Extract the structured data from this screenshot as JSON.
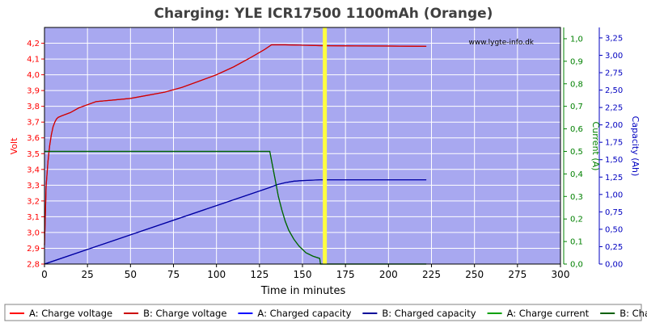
{
  "chart_data": {
    "type": "line",
    "title": "Charging: YLE ICR17500 1100mAh (Orange)",
    "watermark": "www.lygte-info.dk",
    "xlabel": "Time in minutes",
    "xlim": [
      0,
      300
    ],
    "x_ticks": [
      "0",
      "25",
      "50",
      "75",
      "100",
      "125",
      "150",
      "175",
      "200",
      "225",
      "250",
      "275",
      "300"
    ],
    "y_axes": {
      "voltage": {
        "label": "Volt",
        "color": "#ff0000",
        "lim": [
          2.8,
          4.3
        ],
        "ticks": [
          "2,8",
          "2,9",
          "3,0",
          "3,1",
          "3,2",
          "3,3",
          "3,4",
          "3,5",
          "3,6",
          "3,7",
          "3,8",
          "3,9",
          "4,0",
          "4,1",
          "4,2"
        ]
      },
      "current": {
        "label": "Current (A)",
        "color": "#008000",
        "lim": [
          0,
          1.05
        ],
        "ticks": [
          "0,0",
          "0,1",
          "0,2",
          "0,3",
          "0,4",
          "0,5",
          "0,6",
          "0,7",
          "0,8",
          "0,9",
          "1,0"
        ]
      },
      "capacity": {
        "label": "Capacity (Ah)",
        "color": "#0000c0",
        "lim": [
          0,
          3.4
        ],
        "ticks": [
          "0,00",
          "0,25",
          "0,50",
          "0,75",
          "1,00",
          "1,25",
          "1,50",
          "1,75",
          "2,00",
          "2,25",
          "2,50",
          "2,75",
          "3,00",
          "3,25"
        ]
      }
    },
    "colors": {
      "plot_bg": "#a8a8f0",
      "grid": "#ffffff",
      "marker": "#ffff40"
    },
    "marker_x": 163,
    "series": [
      {
        "name": "A: Charge voltage",
        "color": "#ff0000",
        "axis": "voltage",
        "x": [
          0,
          1,
          2,
          3,
          4,
          5,
          6,
          7,
          8,
          10,
          15,
          20,
          25,
          30,
          40,
          50,
          60,
          70,
          80,
          90,
          100,
          110,
          120,
          128,
          132,
          140,
          160,
          180,
          200,
          222
        ],
        "y": [
          2.92,
          3.3,
          3.45,
          3.55,
          3.62,
          3.67,
          3.7,
          3.72,
          3.73,
          3.74,
          3.76,
          3.79,
          3.81,
          3.83,
          3.84,
          3.85,
          3.87,
          3.89,
          3.92,
          3.96,
          4.0,
          4.05,
          4.11,
          4.16,
          4.19,
          4.19,
          4.185,
          4.183,
          4.182,
          4.18
        ]
      },
      {
        "name": "B: Charge voltage",
        "color": "#cc0000",
        "axis": "voltage",
        "x": [
          0,
          1,
          2,
          3,
          4,
          5,
          6,
          7,
          8,
          10,
          15,
          20,
          25,
          30,
          40,
          50,
          60,
          70,
          80,
          90,
          100,
          110,
          120,
          128,
          132,
          140,
          160,
          180,
          200,
          222
        ],
        "y": [
          2.92,
          3.3,
          3.45,
          3.55,
          3.62,
          3.67,
          3.7,
          3.72,
          3.73,
          3.74,
          3.76,
          3.79,
          3.81,
          3.83,
          3.84,
          3.85,
          3.87,
          3.89,
          3.92,
          3.96,
          4.0,
          4.05,
          4.11,
          4.16,
          4.19,
          4.19,
          4.185,
          4.183,
          4.182,
          4.18
        ]
      },
      {
        "name": "A: Charged capacity",
        "color": "#0000ff",
        "axis": "capacity",
        "x": [
          0,
          131,
          135,
          140,
          145,
          150,
          155,
          160,
          170,
          222
        ],
        "y": [
          0,
          1.1,
          1.14,
          1.17,
          1.19,
          1.2,
          1.205,
          1.21,
          1.21,
          1.21
        ]
      },
      {
        "name": "B: Charged capacity",
        "color": "#000099",
        "axis": "capacity",
        "x": [
          0,
          131,
          135,
          140,
          145,
          150,
          155,
          160,
          170,
          222
        ],
        "y": [
          0,
          1.1,
          1.14,
          1.17,
          1.19,
          1.2,
          1.205,
          1.21,
          1.21,
          1.21
        ]
      },
      {
        "name": "A: Charge current",
        "color": "#00a000",
        "axis": "current",
        "x": [
          0,
          131,
          132,
          134,
          136,
          138,
          140,
          142,
          145,
          148,
          152,
          156,
          160,
          160.5,
          222
        ],
        "y": [
          0.5,
          0.5,
          0.46,
          0.38,
          0.3,
          0.24,
          0.19,
          0.15,
          0.11,
          0.08,
          0.05,
          0.035,
          0.025,
          0,
          0
        ]
      },
      {
        "name": "B: Charge current",
        "color": "#006000",
        "axis": "current",
        "x": [
          0,
          131,
          132,
          134,
          136,
          138,
          140,
          142,
          145,
          148,
          152,
          156,
          160,
          160.5,
          222
        ],
        "y": [
          0.5,
          0.5,
          0.46,
          0.38,
          0.3,
          0.24,
          0.19,
          0.15,
          0.11,
          0.08,
          0.05,
          0.035,
          0.025,
          0,
          0
        ]
      }
    ],
    "legend_position": "bottom"
  }
}
